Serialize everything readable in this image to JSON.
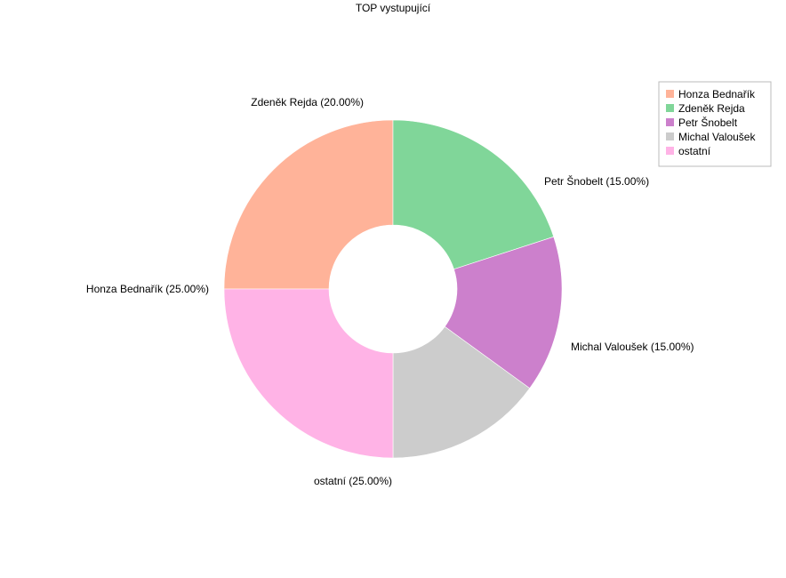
{
  "chart_data": {
    "type": "pie",
    "variant": "donut",
    "title": "TOP vystupující",
    "legend_position": "top-right",
    "start_angle_deg": 180,
    "direction": "clockwise",
    "categories": [
      "Honza Bednařík",
      "Zdeněk Rejda",
      "Petr Šnobelt",
      "Michal Valoušek",
      "ostatní"
    ],
    "values": [
      25,
      20,
      15,
      15,
      25
    ],
    "slice_labels": [
      "Honza Bednařík (25.00%)",
      "Zdeněk Rejda (20.00%)",
      "Petr Šnobelt (15.00%)",
      "Michal Valoušek (15.00%)",
      "ostatní (25.00%)"
    ],
    "colors": [
      "#ffb399",
      "#80d699",
      "#cc80cc",
      "#cccccc",
      "#ffb3e6"
    ]
  }
}
